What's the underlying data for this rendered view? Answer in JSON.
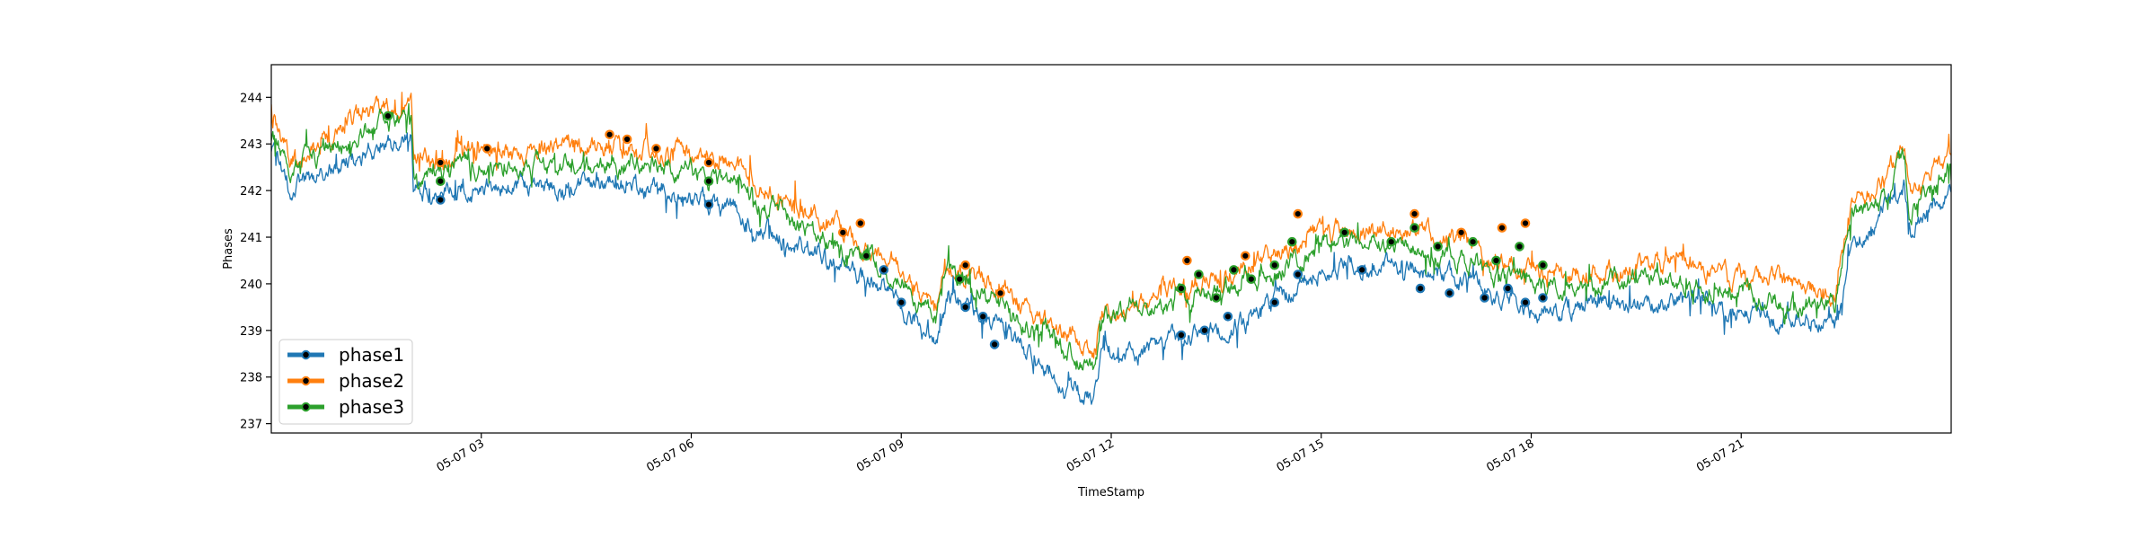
{
  "chart_data": {
    "type": "line",
    "title": "",
    "xlabel": "TimeStamp",
    "ylabel": "Phases",
    "x_range": [
      "2023-05-07 00:00",
      "2023-05-08 00:00"
    ],
    "ylim": [
      236.8,
      244.7
    ],
    "y_ticks": [
      237,
      238,
      239,
      240,
      241,
      242,
      243,
      244
    ],
    "x_ticks": [
      {
        "time": "2023-05-07 03:00",
        "label": "05-07 03"
      },
      {
        "time": "2023-05-07 06:00",
        "label": "05-07 06"
      },
      {
        "time": "2023-05-07 09:00",
        "label": "05-07 09"
      },
      {
        "time": "2023-05-07 12:00",
        "label": "05-07 12"
      },
      {
        "time": "2023-05-07 15:00",
        "label": "05-07 15"
      },
      {
        "time": "2023-05-07 18:00",
        "label": "05-07 18"
      },
      {
        "time": "2023-05-07 21:00",
        "label": "05-07 21"
      }
    ],
    "grid": false,
    "legend_position": "lower-left",
    "legend_marker": "circle",
    "series": [
      {
        "name": "phase1",
        "color": "#1f77b4",
        "anchors": [
          [
            "2023-05-07 00:00",
            242.9
          ],
          [
            "2023-05-07 00:15",
            242.1
          ],
          [
            "2023-05-07 00:45",
            242.3
          ],
          [
            "2023-05-07 01:15",
            242.8
          ],
          [
            "2023-05-07 02:00",
            243.1
          ],
          [
            "2023-05-07 02:02",
            242.0
          ],
          [
            "2023-05-07 03:00",
            242.0
          ],
          [
            "2023-05-07 04:00",
            242.1
          ],
          [
            "2023-05-07 05:00",
            242.1
          ],
          [
            "2023-05-07 06:00",
            241.9
          ],
          [
            "2023-05-07 07:00",
            241.3
          ],
          [
            "2023-05-07 07:30",
            240.8
          ],
          [
            "2023-05-07 08:30",
            240.2
          ],
          [
            "2023-05-07 09:00",
            239.6
          ],
          [
            "2023-05-07 09:30",
            238.9
          ],
          [
            "2023-05-07 09:40",
            239.7
          ],
          [
            "2023-05-07 10:30",
            239.0
          ],
          [
            "2023-05-07 11:00",
            238.2
          ],
          [
            "2023-05-07 11:45",
            237.4
          ],
          [
            "2023-05-07 11:52",
            238.5
          ],
          [
            "2023-05-07 12:30",
            238.6
          ],
          [
            "2023-05-07 13:00",
            238.9
          ],
          [
            "2023-05-07 14:00",
            239.2
          ],
          [
            "2023-05-07 15:00",
            240.4
          ],
          [
            "2023-05-07 16:00",
            240.4
          ],
          [
            "2023-05-07 17:00",
            240.1
          ],
          [
            "2023-05-07 18:00",
            239.4
          ],
          [
            "2023-05-07 19:00",
            239.5
          ],
          [
            "2023-05-07 20:00",
            239.7
          ],
          [
            "2023-05-07 21:00",
            239.4
          ],
          [
            "2023-05-07 22:00",
            239.1
          ],
          [
            "2023-05-07 22:20",
            239.0
          ],
          [
            "2023-05-07 22:35",
            240.8
          ],
          [
            "2023-05-07 23:00",
            241.4
          ],
          [
            "2023-05-07 23:20",
            242.1
          ],
          [
            "2023-05-07 23:25",
            241.1
          ],
          [
            "2023-05-08 00:00",
            242.0
          ]
        ]
      },
      {
        "name": "phase2",
        "color": "#ff7f0e",
        "anchors": [
          [
            "2023-05-07 00:00",
            243.5
          ],
          [
            "2023-05-07 00:15",
            242.7
          ],
          [
            "2023-05-07 00:45",
            243.0
          ],
          [
            "2023-05-07 01:15",
            243.6
          ],
          [
            "2023-05-07 02:00",
            243.9
          ],
          [
            "2023-05-07 02:02",
            242.6
          ],
          [
            "2023-05-07 03:00",
            242.9
          ],
          [
            "2023-05-07 04:00",
            242.9
          ],
          [
            "2023-05-07 05:00",
            243.0
          ],
          [
            "2023-05-07 06:00",
            242.8
          ],
          [
            "2023-05-07 07:00",
            242.2
          ],
          [
            "2023-05-07 07:30",
            241.7
          ],
          [
            "2023-05-07 08:30",
            240.9
          ],
          [
            "2023-05-07 09:00",
            240.3
          ],
          [
            "2023-05-07 09:30",
            239.6
          ],
          [
            "2023-05-07 09:40",
            240.4
          ],
          [
            "2023-05-07 10:30",
            239.8
          ],
          [
            "2023-05-07 11:00",
            239.2
          ],
          [
            "2023-05-07 11:45",
            238.5
          ],
          [
            "2023-05-07 11:52",
            239.4
          ],
          [
            "2023-05-07 12:30",
            239.6
          ],
          [
            "2023-05-07 13:00",
            239.9
          ],
          [
            "2023-05-07 14:00",
            240.3
          ],
          [
            "2023-05-07 15:00",
            241.1
          ],
          [
            "2023-05-07 16:00",
            241.2
          ],
          [
            "2023-05-07 17:00",
            240.9
          ],
          [
            "2023-05-07 18:00",
            240.2
          ],
          [
            "2023-05-07 19:00",
            240.2
          ],
          [
            "2023-05-07 20:00",
            240.4
          ],
          [
            "2023-05-07 21:00",
            240.1
          ],
          [
            "2023-05-07 22:00",
            239.9
          ],
          [
            "2023-05-07 22:20",
            239.8
          ],
          [
            "2023-05-07 22:35",
            241.7
          ],
          [
            "2023-05-07 23:00",
            242.2
          ],
          [
            "2023-05-07 23:20",
            243.1
          ],
          [
            "2023-05-07 23:25",
            242.0
          ],
          [
            "2023-05-08 00:00",
            242.7
          ]
        ]
      },
      {
        "name": "phase3",
        "color": "#2ca02c",
        "anchors": [
          [
            "2023-05-07 00:00",
            243.2
          ],
          [
            "2023-05-07 00:15",
            242.4
          ],
          [
            "2023-05-07 00:45",
            242.7
          ],
          [
            "2023-05-07 01:15",
            243.3
          ],
          [
            "2023-05-07 02:00",
            243.6
          ],
          [
            "2023-05-07 02:02",
            242.3
          ],
          [
            "2023-05-07 03:00",
            242.5
          ],
          [
            "2023-05-07 04:00",
            242.5
          ],
          [
            "2023-05-07 05:00",
            242.6
          ],
          [
            "2023-05-07 06:00",
            242.4
          ],
          [
            "2023-05-07 07:00",
            241.8
          ],
          [
            "2023-05-07 07:30",
            241.3
          ],
          [
            "2023-05-07 08:30",
            240.6
          ],
          [
            "2023-05-07 09:00",
            240.0
          ],
          [
            "2023-05-07 09:30",
            239.3
          ],
          [
            "2023-05-07 09:40",
            240.1
          ],
          [
            "2023-05-07 10:30",
            239.5
          ],
          [
            "2023-05-07 11:00",
            238.9
          ],
          [
            "2023-05-07 11:45",
            238.2
          ],
          [
            "2023-05-07 11:52",
            239.2
          ],
          [
            "2023-05-07 12:30",
            239.4
          ],
          [
            "2023-05-07 13:00",
            239.7
          ],
          [
            "2023-05-07 14:00",
            240.0
          ],
          [
            "2023-05-07 15:00",
            240.8
          ],
          [
            "2023-05-07 16:00",
            240.9
          ],
          [
            "2023-05-07 17:00",
            240.6
          ],
          [
            "2023-05-07 18:00",
            239.9
          ],
          [
            "2023-05-07 19:00",
            240.0
          ],
          [
            "2023-05-07 20:00",
            240.1
          ],
          [
            "2023-05-07 21:00",
            239.8
          ],
          [
            "2023-05-07 22:00",
            239.5
          ],
          [
            "2023-05-07 22:20",
            239.5
          ],
          [
            "2023-05-07 22:35",
            241.3
          ],
          [
            "2023-05-07 23:00",
            241.8
          ],
          [
            "2023-05-07 23:20",
            242.6
          ],
          [
            "2023-05-07 23:25",
            241.6
          ],
          [
            "2023-05-08 00:00",
            242.4
          ]
        ]
      }
    ],
    "highlighted_points": {
      "phase1": [
        [
          "2023-05-07 02:25",
          241.8
        ],
        [
          "2023-05-07 06:15",
          241.7
        ],
        [
          "2023-05-07 08:45",
          240.3
        ],
        [
          "2023-05-07 09:00",
          239.6
        ],
        [
          "2023-05-07 09:55",
          239.5
        ],
        [
          "2023-05-07 10:10",
          239.3
        ],
        [
          "2023-05-07 10:20",
          238.7
        ],
        [
          "2023-05-07 13:00",
          238.9
        ],
        [
          "2023-05-07 13:20",
          239.0
        ],
        [
          "2023-05-07 13:40",
          239.3
        ],
        [
          "2023-05-07 14:20",
          239.6
        ],
        [
          "2023-05-07 14:40",
          240.2
        ],
        [
          "2023-05-07 15:35",
          240.3
        ],
        [
          "2023-05-07 16:25",
          239.9
        ],
        [
          "2023-05-07 16:50",
          239.8
        ],
        [
          "2023-05-07 17:20",
          239.7
        ],
        [
          "2023-05-07 17:40",
          239.9
        ],
        [
          "2023-05-07 17:55",
          239.6
        ],
        [
          "2023-05-07 18:10",
          239.7
        ]
      ],
      "phase2": [
        [
          "2023-05-07 02:25",
          242.6
        ],
        [
          "2023-05-07 03:05",
          242.9
        ],
        [
          "2023-05-07 04:50",
          243.2
        ],
        [
          "2023-05-07 05:05",
          243.1
        ],
        [
          "2023-05-07 05:30",
          242.9
        ],
        [
          "2023-05-07 06:15",
          242.6
        ],
        [
          "2023-05-07 08:10",
          241.1
        ],
        [
          "2023-05-07 08:25",
          241.3
        ],
        [
          "2023-05-07 09:55",
          240.4
        ],
        [
          "2023-05-07 10:25",
          239.8
        ],
        [
          "2023-05-07 13:05",
          240.5
        ],
        [
          "2023-05-07 13:55",
          240.6
        ],
        [
          "2023-05-07 14:40",
          241.5
        ],
        [
          "2023-05-07 16:20",
          241.5
        ],
        [
          "2023-05-07 17:00",
          241.1
        ],
        [
          "2023-05-07 17:35",
          241.2
        ],
        [
          "2023-05-07 17:55",
          241.3
        ]
      ],
      "phase3": [
        [
          "2023-05-07 01:40",
          243.6
        ],
        [
          "2023-05-07 02:25",
          242.2
        ],
        [
          "2023-05-07 06:15",
          242.2
        ],
        [
          "2023-05-07 08:30",
          240.6
        ],
        [
          "2023-05-07 09:50",
          240.1
        ],
        [
          "2023-05-07 13:00",
          239.9
        ],
        [
          "2023-05-07 13:15",
          240.2
        ],
        [
          "2023-05-07 13:30",
          239.7
        ],
        [
          "2023-05-07 13:45",
          240.3
        ],
        [
          "2023-05-07 14:00",
          240.1
        ],
        [
          "2023-05-07 14:20",
          240.4
        ],
        [
          "2023-05-07 14:35",
          240.9
        ],
        [
          "2023-05-07 15:20",
          241.1
        ],
        [
          "2023-05-07 16:00",
          240.9
        ],
        [
          "2023-05-07 16:20",
          241.2
        ],
        [
          "2023-05-07 16:40",
          240.8
        ],
        [
          "2023-05-07 17:10",
          240.9
        ],
        [
          "2023-05-07 17:30",
          240.5
        ],
        [
          "2023-05-07 17:50",
          240.8
        ],
        [
          "2023-05-07 18:10",
          240.4
        ]
      ]
    }
  }
}
